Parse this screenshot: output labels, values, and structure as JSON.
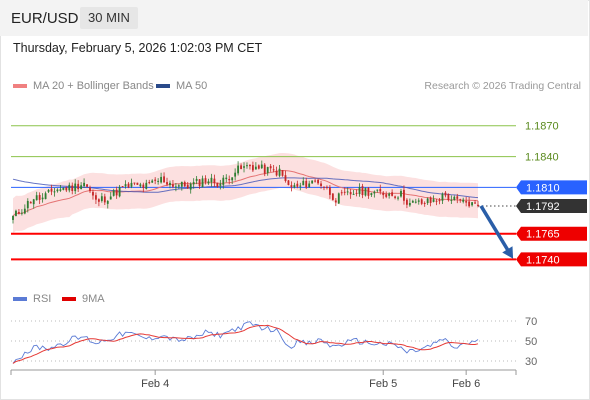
{
  "header": {
    "pair": "EUR/USD",
    "timeframe": "30 MIN",
    "datetime": "Thursday, February 5, 2026 1:02:03 PM CET"
  },
  "legend": {
    "ma20_label": "MA 20 + Bollinger Bands",
    "ma50_label": "MA 50",
    "credit": "Research © 2026 Trading Central",
    "rsi_label": "RSI",
    "rsi_ma_label": "9MA"
  },
  "colors": {
    "bull": "#2e7d32",
    "bear": "#c62828",
    "ma20": "#e57373",
    "ma50": "#3f51b5",
    "band": "#fbd6d6",
    "resistance": "#8bc34a",
    "pivot": "#2962ff",
    "support": "#ff0000",
    "current": "#333333",
    "forecast": "#2a5ea8",
    "rsi": "#5b7bd5",
    "rsi_ma": "#e53935"
  },
  "chart_data": [
    {
      "type": "candlestick",
      "ylim": [
        1.172,
        1.1895
      ],
      "x_ticks": [
        "Feb 4",
        "Feb 5",
        "Feb 6"
      ],
      "x_tick_bars": [
        48,
        125,
        153
      ],
      "bar_count": 158,
      "anchors": [
        [
          0,
          1.1781
        ],
        [
          3,
          1.1789
        ],
        [
          7,
          1.18
        ],
        [
          10,
          1.1799
        ],
        [
          14,
          1.1808
        ],
        [
          20,
          1.181
        ],
        [
          24,
          1.1815
        ],
        [
          28,
          1.1796
        ],
        [
          33,
          1.1802
        ],
        [
          36,
          1.1808
        ],
        [
          40,
          1.1812
        ],
        [
          45,
          1.1811
        ],
        [
          50,
          1.1818
        ],
        [
          55,
          1.1812
        ],
        [
          60,
          1.1812
        ],
        [
          65,
          1.1818
        ],
        [
          70,
          1.1814
        ],
        [
          75,
          1.1826
        ],
        [
          80,
          1.1831
        ],
        [
          85,
          1.1827
        ],
        [
          90,
          1.1825
        ],
        [
          93,
          1.1811
        ],
        [
          96,
          1.181
        ],
        [
          100,
          1.1815
        ],
        [
          103,
          1.1816
        ],
        [
          106,
          1.1808
        ],
        [
          109,
          1.1799
        ],
        [
          112,
          1.1802
        ],
        [
          115,
          1.1805
        ],
        [
          119,
          1.1807
        ],
        [
          123,
          1.1804
        ],
        [
          127,
          1.1804
        ],
        [
          131,
          1.1803
        ],
        [
          134,
          1.1794
        ],
        [
          138,
          1.1795
        ],
        [
          141,
          1.1796
        ],
        [
          146,
          1.1802
        ],
        [
          150,
          1.1796
        ],
        [
          153,
          1.1795
        ],
        [
          157,
          1.1792
        ]
      ],
      "levels": [
        {
          "name": "resistance-2",
          "value": 1.187,
          "label": "1.1870",
          "role": "resistance"
        },
        {
          "name": "resistance-1",
          "value": 1.184,
          "label": "1.1840",
          "role": "resistance"
        },
        {
          "name": "pivot",
          "value": 1.181,
          "label": "1.1810",
          "role": "pivot"
        },
        {
          "name": "support-1",
          "value": 1.1765,
          "label": "1.1765",
          "role": "support"
        },
        {
          "name": "support-2",
          "value": 1.174,
          "label": "1.1740",
          "role": "support"
        }
      ],
      "current_price": {
        "value": 1.1792,
        "label": "1.1792"
      },
      "forecast": {
        "from": 1.1792,
        "to": 1.1744
      }
    },
    {
      "type": "line",
      "name": "rsi-panel",
      "ylim": [
        24,
        78
      ],
      "y_ticks": [
        30,
        50,
        70
      ],
      "anchors_rsi": [
        [
          0,
          30
        ],
        [
          4,
          38
        ],
        [
          8,
          44
        ],
        [
          12,
          43
        ],
        [
          16,
          47
        ],
        [
          20,
          52
        ],
        [
          24,
          54
        ],
        [
          28,
          48
        ],
        [
          33,
          53
        ],
        [
          38,
          58
        ],
        [
          42,
          55
        ],
        [
          46,
          52
        ],
        [
          50,
          56
        ],
        [
          55,
          51
        ],
        [
          60,
          52
        ],
        [
          65,
          58
        ],
        [
          70,
          56
        ],
        [
          75,
          62
        ],
        [
          80,
          67
        ],
        [
          85,
          63
        ],
        [
          90,
          59
        ],
        [
          93,
          44
        ],
        [
          96,
          49
        ],
        [
          100,
          47
        ],
        [
          104,
          51
        ],
        [
          108,
          44
        ],
        [
          112,
          48
        ],
        [
          116,
          50
        ],
        [
          120,
          48
        ],
        [
          125,
          47
        ],
        [
          129,
          46
        ],
        [
          133,
          39
        ],
        [
          137,
          41
        ],
        [
          141,
          45
        ],
        [
          145,
          52
        ],
        [
          149,
          43
        ],
        [
          153,
          48
        ],
        [
          157,
          49
        ]
      ]
    }
  ]
}
